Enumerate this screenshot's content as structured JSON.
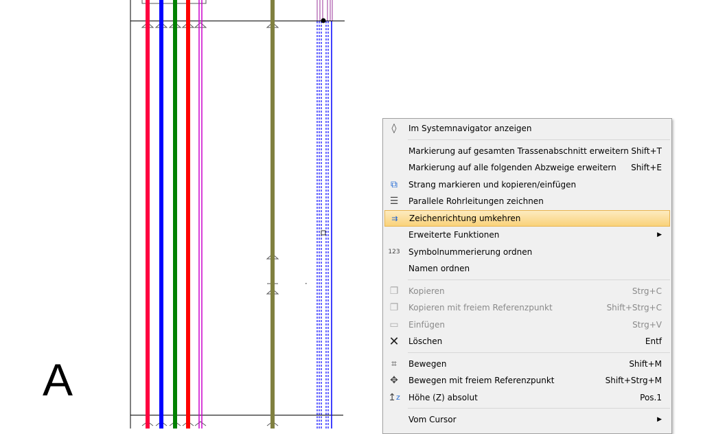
{
  "drawing": {
    "section_label": "A",
    "pipe_colors": [
      "#ff0040",
      "#0000ff",
      "#008000",
      "#ff0000",
      "#cc00cc",
      "#808040",
      "#0000ff"
    ]
  },
  "menu": {
    "highlight_color": "#f9d27a",
    "items": [
      {
        "label": "Im Systemnavigator anzeigen",
        "shortcut": "",
        "icon": "drop-icon"
      },
      {
        "label": "Markierung auf gesamten Trassenabschnitt erweitern",
        "shortcut": "Shift+T"
      },
      {
        "label": "Markierung auf alle folgenden Abzweige erweitern",
        "shortcut": "Shift+E"
      },
      {
        "label": "Strang markieren und kopieren/einfügen",
        "shortcut": "",
        "icon": "copy-add-icon"
      },
      {
        "label": "Parallele Rohrleitungen zeichnen",
        "shortcut": "",
        "icon": "parallel-lines-icon"
      },
      {
        "label": "Zeichenrichtung umkehren",
        "shortcut": "",
        "icon": "reverse-direction-icon"
      },
      {
        "label": "Erweiterte Funktionen",
        "shortcut": ""
      },
      {
        "label": "Symbolnummerierung ordnen",
        "shortcut": "",
        "icon": "numbering-icon"
      },
      {
        "label": "Namen ordnen",
        "shortcut": ""
      },
      {
        "label": "Kopieren",
        "shortcut": "Strg+C",
        "icon": "copy-icon"
      },
      {
        "label": "Kopieren mit freiem Referenzpunkt",
        "shortcut": "Shift+Strg+C",
        "icon": "copy-reference-icon"
      },
      {
        "label": "Einfügen",
        "shortcut": "Strg+V",
        "icon": "paste-icon"
      },
      {
        "label": "Löschen",
        "shortcut": "Entf",
        "icon": "delete-icon"
      },
      {
        "label": "Bewegen",
        "shortcut": "Shift+M",
        "icon": "move-icon"
      },
      {
        "label": "Bewegen mit freiem Referenzpunkt",
        "shortcut": "Shift+Strg+M",
        "icon": "move-reference-icon"
      },
      {
        "label": "Höhe (Z) absolut",
        "shortcut": "Pos.1",
        "icon": "height-z-icon"
      },
      {
        "label": "Vom Cursor",
        "shortcut": ""
      }
    ]
  }
}
